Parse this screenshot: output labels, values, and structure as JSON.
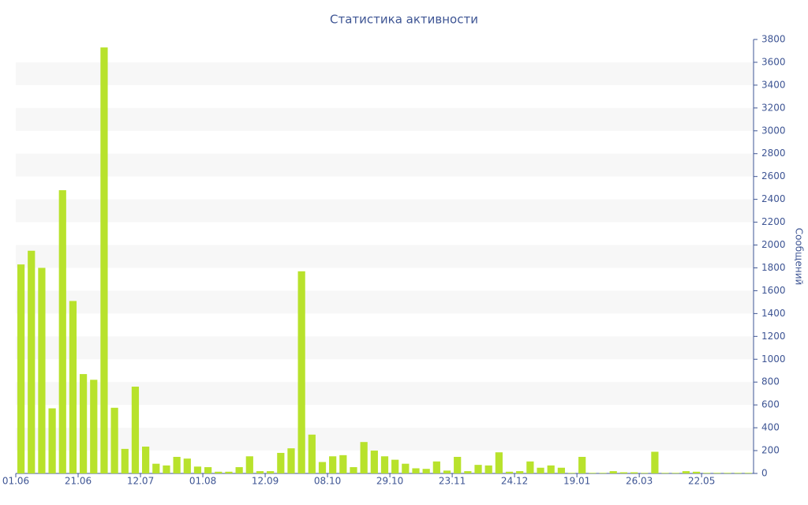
{
  "chart_data": {
    "type": "bar",
    "title": "Статистика активности",
    "y_axis_label": "Сообщений",
    "y_axis_side": "right",
    "categories": [
      "01.06",
      null,
      null,
      null,
      null,
      null,
      "21.06",
      null,
      null,
      null,
      null,
      null,
      "12.07",
      null,
      null,
      null,
      null,
      null,
      "01.08",
      null,
      null,
      null,
      null,
      null,
      "12.09",
      null,
      null,
      null,
      null,
      null,
      "08.10",
      null,
      null,
      null,
      null,
      null,
      "29.10",
      null,
      null,
      null,
      null,
      null,
      "23.11",
      null,
      null,
      null,
      null,
      null,
      "24.12",
      null,
      null,
      null,
      null,
      null,
      "19.01",
      null,
      null,
      null,
      null,
      null,
      "26.03",
      null,
      null,
      null,
      null,
      null,
      "22.05",
      null,
      null,
      null,
      null
    ],
    "values": [
      1830,
      1950,
      1800,
      570,
      2480,
      1510,
      870,
      820,
      3730,
      575,
      215,
      760,
      235,
      85,
      70,
      145,
      130,
      60,
      55,
      15,
      15,
      55,
      150,
      20,
      20,
      180,
      220,
      1770,
      340,
      100,
      150,
      160,
      55,
      275,
      200,
      150,
      120,
      85,
      45,
      40,
      105,
      25,
      145,
      20,
      75,
      70,
      185,
      15,
      20,
      105,
      50,
      70,
      50,
      5,
      145,
      5,
      5,
      20,
      10,
      10,
      5,
      190,
      5,
      5,
      20,
      15,
      5,
      5,
      5,
      5,
      5
    ],
    "color": "#b8e22c",
    "ylim": [
      0,
      3800
    ],
    "yticks": [
      0,
      200,
      400,
      600,
      800,
      1000,
      1200,
      1400,
      1600,
      1800,
      2000,
      2200,
      2400,
      2600,
      2800,
      3000,
      3200,
      3400,
      3600,
      3800
    ],
    "grid": "bands"
  }
}
